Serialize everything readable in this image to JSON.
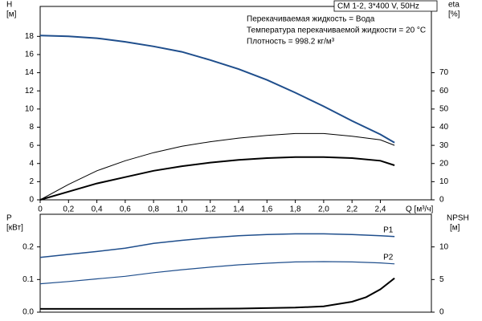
{
  "chart_data": [
    {
      "type": "line",
      "annotations": [
        "CM 1-2, 3*400 V, 50Hz",
        "Перекачиваемая жидкость = Вода",
        "Температура перекачиваемой жидкости = 20 °C",
        "Плотность = 998.2 кг/м³"
      ],
      "ylabel": [
        "H",
        "[м]"
      ],
      "y2label": [
        "eta",
        "[%]"
      ],
      "xlabel": "Q [м³/ч]",
      "xlim": [
        0,
        2.76
      ],
      "ylim": [
        0,
        21.3
      ],
      "y2lim": [
        0,
        106.5
      ],
      "xticks": [
        0,
        {
          "value": 0.2,
          "label": "0,2"
        },
        {
          "value": 0.4,
          "label": "0,4"
        },
        {
          "value": 0.6,
          "label": "0,6"
        },
        {
          "value": 0.8,
          "label": "0,8"
        },
        {
          "value": 1.0,
          "label": "1,0"
        },
        {
          "value": 1.2,
          "label": "1,2"
        },
        {
          "value": 1.4,
          "label": "1,4"
        },
        {
          "value": 1.6,
          "label": "1,6"
        },
        {
          "value": 1.8,
          "label": "1,8"
        },
        {
          "value": 2.0,
          "label": "2,0"
        },
        {
          "value": 2.2,
          "label": "2,2"
        },
        {
          "value": 2.4,
          "label": "2,4"
        }
      ],
      "yticks": [
        0,
        2,
        4,
        6,
        8,
        10,
        12,
        14,
        16,
        18
      ],
      "y2ticks": [
        0,
        10,
        20,
        30,
        40,
        50,
        60,
        70
      ],
      "series": [
        {
          "color": "#1f4e8c",
          "width": 2,
          "x": [
            0,
            0.2,
            0.4,
            0.6,
            0.8,
            1.0,
            1.2,
            1.4,
            1.6,
            1.8,
            2.0,
            2.2,
            2.4,
            2.5
          ],
          "values": [
            18.1,
            18.0,
            17.8,
            17.4,
            16.9,
            16.3,
            15.4,
            14.4,
            13.2,
            11.8,
            10.3,
            8.7,
            7.2,
            6.3
          ]
        },
        {
          "color": "#000000",
          "width": 1,
          "axis": "y2",
          "x": [
            0,
            0.2,
            0.4,
            0.6,
            0.8,
            1.0,
            1.2,
            1.4,
            1.6,
            1.8,
            2.0,
            2.2,
            2.4,
            2.5
          ],
          "values": [
            0,
            8.5,
            16,
            21.5,
            26,
            29.5,
            32,
            34,
            35.5,
            36.5,
            36.5,
            35,
            33,
            30
          ]
        },
        {
          "color": "#000000",
          "width": 2,
          "axis": "y2",
          "x": [
            0,
            0.2,
            0.4,
            0.6,
            0.8,
            1.0,
            1.2,
            1.4,
            1.6,
            1.8,
            2.0,
            2.2,
            2.4,
            2.5
          ],
          "values": [
            0,
            4.5,
            9,
            12.5,
            16,
            18.5,
            20.5,
            22,
            23,
            23.5,
            23.5,
            23,
            21.5,
            19
          ]
        }
      ]
    },
    {
      "type": "line",
      "ylabel": [
        "P",
        "[кВт]"
      ],
      "y2label": [
        "NPSH",
        "[м]"
      ],
      "xlim": [
        0,
        2.76
      ],
      "ylim": [
        0,
        0.3
      ],
      "y2lim": [
        0,
        15
      ],
      "yticks": [
        {
          "value": 0,
          "label": "0.0"
        },
        {
          "value": 0.1,
          "label": "0.1"
        },
        {
          "value": 0.2,
          "label": "0.2"
        }
      ],
      "y2ticks": [
        0,
        5,
        10
      ],
      "series": [
        {
          "name": "P1",
          "color": "#1f4e8c",
          "width": 1.5,
          "x": [
            0,
            0.2,
            0.4,
            0.6,
            0.8,
            1.0,
            1.2,
            1.4,
            1.6,
            1.8,
            2.0,
            2.2,
            2.4,
            2.5
          ],
          "values": [
            0.168,
            0.177,
            0.186,
            0.196,
            0.211,
            0.22,
            0.228,
            0.234,
            0.238,
            0.24,
            0.24,
            0.238,
            0.234,
            0.232
          ]
        },
        {
          "name": "P2",
          "color": "#1f4e8c",
          "width": 1.2,
          "x": [
            0,
            0.2,
            0.4,
            0.6,
            0.8,
            1.0,
            1.2,
            1.4,
            1.6,
            1.8,
            2.0,
            2.2,
            2.4,
            2.5
          ],
          "values": [
            0.087,
            0.094,
            0.102,
            0.11,
            0.121,
            0.13,
            0.138,
            0.145,
            0.15,
            0.154,
            0.155,
            0.154,
            0.151,
            0.148
          ]
        },
        {
          "color": "#000000",
          "width": 2,
          "axis": "y2",
          "x": [
            0,
            0.7,
            1.0,
            1.4,
            1.8,
            2.0,
            2.2,
            2.3,
            2.4,
            2.5
          ],
          "values": [
            0.5,
            0.5,
            0.5,
            0.55,
            0.7,
            0.9,
            1.6,
            2.3,
            3.5,
            5.2
          ]
        }
      ]
    }
  ]
}
